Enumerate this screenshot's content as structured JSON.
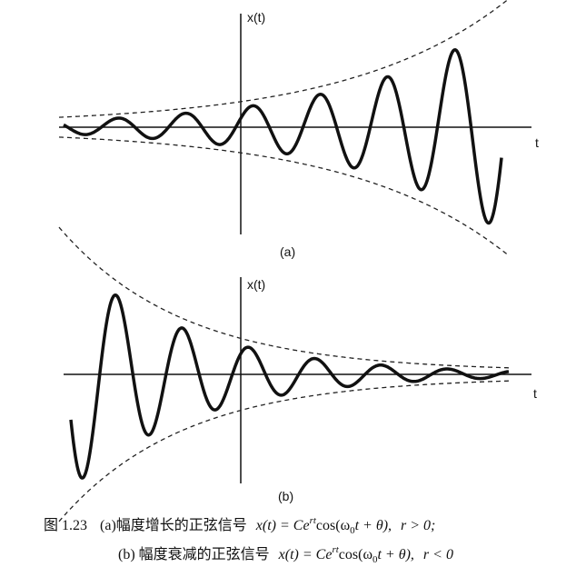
{
  "figure_a": {
    "y_label": "x(t)",
    "x_label": "t",
    "label": "(a)"
  },
  "figure_b": {
    "y_label": "x(t)",
    "x_label": "t",
    "label": "(b)"
  },
  "caption": {
    "number": "图 1.23",
    "a": {
      "prefix": "(a)幅度增长的正弦信号",
      "formula": "x(t) = Ce",
      "exponent": "rt",
      "cos": "cos(ω",
      "subscript": "0",
      "tail": "t + θ),",
      "condition": "r > 0;"
    },
    "b": {
      "prefix": "(b) 幅度衰减的正弦信号",
      "formula": "x(t) = Ce",
      "exponent": "rt",
      "cos": "cos(ω",
      "subscript": "0",
      "tail": "t + θ),",
      "condition": "r < 0"
    }
  }
}
